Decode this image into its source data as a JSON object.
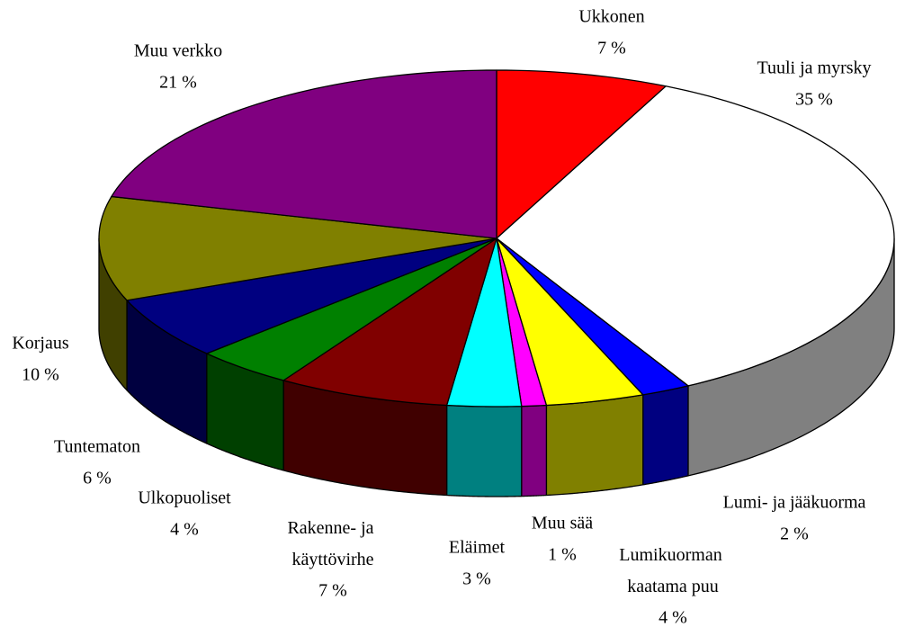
{
  "chart_data": {
    "type": "pie3d",
    "categories": [
      "Ukkonen",
      "Tuuli ja myrsky",
      "Lumi- ja jääkuorma",
      "Lumikuorman kaatama puu",
      "Muu sää",
      "Eläimet",
      "Rakenne- ja käyttövirhe",
      "Ulkopuoliset",
      "Tuntematon",
      "Korjaus",
      "Muu verkko"
    ],
    "values": [
      7,
      35,
      2,
      4,
      1,
      3,
      7,
      4,
      6,
      10,
      21
    ],
    "value_labels": [
      "7 %",
      "35 %",
      "2 %",
      "4 %",
      "1 %",
      "3 %",
      "7 %",
      "4 %",
      "6 %",
      "10 %",
      "21 %"
    ],
    "colors": [
      "#ff0000",
      "#ffffff",
      "#0000ff",
      "#ffff00",
      "#ff00ff",
      "#00ffff",
      "#800000",
      "#008000",
      "#000080",
      "#808000",
      "#800080"
    ]
  }
}
